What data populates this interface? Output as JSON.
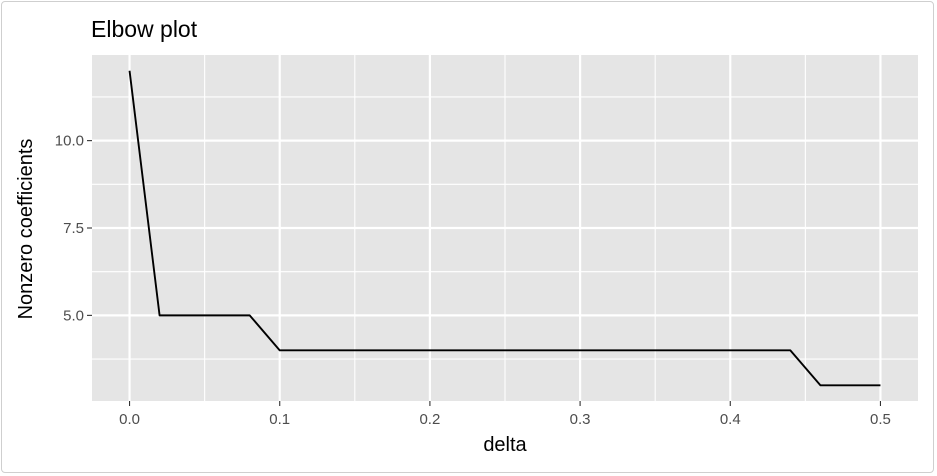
{
  "chart_data": {
    "type": "line",
    "title": "Elbow plot",
    "xlabel": "delta",
    "ylabel": "Nonzero coefficients",
    "xlim": [
      -0.025,
      0.525
    ],
    "ylim": [
      2.55,
      12.45
    ],
    "x_ticks": [
      0.0,
      0.1,
      0.2,
      0.3,
      0.4,
      0.5
    ],
    "x_tick_labels": [
      "0.0",
      "0.1",
      "0.2",
      "0.3",
      "0.4",
      "0.5"
    ],
    "y_ticks": [
      5.0,
      7.5,
      10.0
    ],
    "y_tick_labels": [
      "5.0",
      "7.5",
      "10.0"
    ],
    "grid": true,
    "background": "#e5e5e5",
    "grid_color": "#ffffff",
    "line_color": "#000000",
    "series": [
      {
        "x": [
          0.0,
          0.02,
          0.04,
          0.06,
          0.08,
          0.1,
          0.12,
          0.14,
          0.16,
          0.18,
          0.2,
          0.22,
          0.24,
          0.26,
          0.28,
          0.3,
          0.32,
          0.34,
          0.36,
          0.38,
          0.4,
          0.42,
          0.44,
          0.46,
          0.48,
          0.5
        ],
        "y": [
          12,
          5,
          5,
          5,
          5,
          4,
          4,
          4,
          4,
          4,
          4,
          4,
          4,
          4,
          4,
          4,
          4,
          4,
          4,
          4,
          4,
          4,
          4,
          3,
          3,
          3
        ]
      }
    ]
  }
}
